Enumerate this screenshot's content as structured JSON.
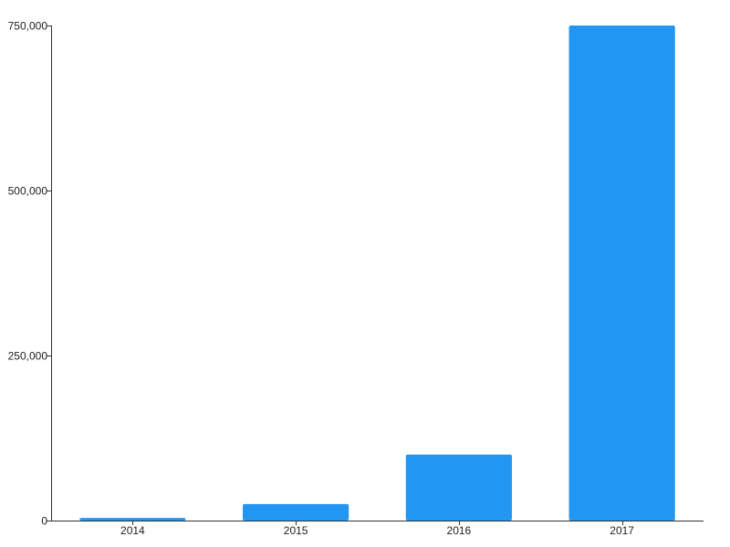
{
  "chart_data": {
    "type": "bar",
    "categories": [
      "2014",
      "2015",
      "2016",
      "2017"
    ],
    "values": [
      4000,
      25000,
      100000,
      750000
    ],
    "title": "",
    "xlabel": "",
    "ylabel": "",
    "ylim": [
      0,
      750000
    ],
    "y_ticks": [
      0,
      250000,
      500000,
      750000
    ],
    "y_tick_labels": [
      "0",
      "250,000",
      "500,000",
      "750,000"
    ],
    "grid": false,
    "legend": "none",
    "colors": {
      "bar": "#2196f3",
      "axis": "#333333",
      "text": "#222222"
    }
  }
}
